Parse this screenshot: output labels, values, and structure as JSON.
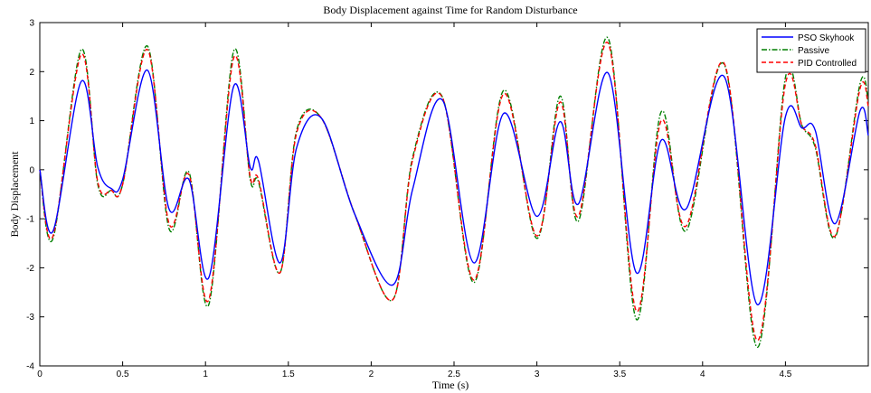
{
  "chart_data": {
    "type": "line",
    "title": "Body Displacement against Time for Random Disturbance",
    "xlabel": "Time (s)",
    "ylabel": "Body Displacement",
    "xlim": [
      0,
      5
    ],
    "ylim": [
      -4,
      3
    ],
    "x_ticks": [
      "0",
      "0.5",
      "1",
      "1.5",
      "2",
      "2.5",
      "3",
      "3.5",
      "4",
      "4.5"
    ],
    "y_ticks": [
      "-4",
      "-3",
      "-2",
      "-1",
      "0",
      "1",
      "2",
      "3"
    ],
    "grid": false,
    "legend_position": "top-right",
    "x": [
      0,
      0.08,
      0.25,
      0.35,
      0.43,
      0.5,
      0.65,
      0.78,
      0.9,
      1.02,
      1.17,
      1.27,
      1.32,
      1.45,
      1.55,
      1.7,
      1.9,
      2.13,
      2.25,
      2.43,
      2.62,
      2.8,
      3.0,
      3.14,
      3.25,
      3.43,
      3.6,
      3.75,
      3.9,
      4.13,
      4.33,
      4.5,
      4.6,
      4.68,
      4.8,
      4.95,
      5.0
    ],
    "series": [
      {
        "name": "PSO Skyhook",
        "color": "#0000ff",
        "dash": "solid",
        "values": [
          0,
          -1.25,
          1.8,
          0.05,
          -0.38,
          -0.2,
          2.03,
          -0.8,
          -0.2,
          -2.2,
          1.7,
          0.05,
          0.18,
          -1.9,
          0.45,
          1.05,
          -0.9,
          -2.35,
          -0.4,
          1.42,
          -1.9,
          1.15,
          -0.95,
          0.98,
          -0.7,
          1.97,
          -2.1,
          0.6,
          -0.8,
          1.9,
          -2.75,
          1.08,
          0.85,
          0.8,
          -1.1,
          1.2,
          0.7
        ]
      },
      {
        "name": "Passive",
        "color": "#007f00",
        "dash": "dash-dot",
        "values": [
          0,
          -1.4,
          2.45,
          -0.3,
          -0.42,
          -0.3,
          2.52,
          -1.2,
          -0.05,
          -2.75,
          2.42,
          -0.2,
          -0.25,
          -2.1,
          0.8,
          1.05,
          -0.9,
          -2.65,
          0.25,
          1.48,
          -2.3,
          1.62,
          -1.4,
          1.5,
          -1.05,
          2.68,
          -3.05,
          1.18,
          -1.25,
          2.15,
          -3.62,
          1.88,
          0.9,
          0.45,
          -1.38,
          1.75,
          1.4
        ]
      },
      {
        "name": "PID Controlled",
        "color": "#ff0000",
        "dash": "dashed",
        "values": [
          0,
          -1.35,
          2.35,
          -0.25,
          -0.42,
          -0.3,
          2.45,
          -1.1,
          -0.1,
          -2.65,
          2.28,
          -0.15,
          -0.2,
          -2.1,
          0.75,
          1.05,
          -0.9,
          -2.65,
          0.2,
          1.47,
          -2.25,
          1.55,
          -1.35,
          1.38,
          -0.95,
          2.58,
          -2.88,
          1.0,
          -1.15,
          2.17,
          -3.48,
          1.75,
          0.9,
          0.5,
          -1.35,
          1.65,
          1.3
        ]
      }
    ]
  }
}
